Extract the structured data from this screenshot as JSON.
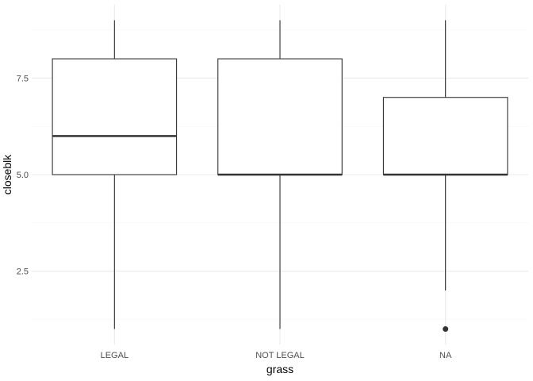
{
  "chart_data": {
    "type": "boxplot",
    "xlabel": "grass",
    "ylabel": "closeblk",
    "categories": [
      "LEGAL",
      "NOT LEGAL",
      "NA"
    ],
    "boxes": [
      {
        "category": "LEGAL",
        "whisker_low": 1,
        "q1": 5,
        "median": 6,
        "q3": 8,
        "whisker_high": 9,
        "outliers": []
      },
      {
        "category": "NOT LEGAL",
        "whisker_low": 1,
        "q1": 5,
        "median": 5,
        "q3": 8,
        "whisker_high": 9,
        "outliers": []
      },
      {
        "category": "NA",
        "whisker_low": 2,
        "q1": 5,
        "median": 5,
        "q3": 7,
        "whisker_high": 9,
        "outliers": [
          1
        ]
      }
    ],
    "ylim": [
      0.6,
      9.4
    ],
    "y_ticks": [
      2.5,
      5.0,
      7.5
    ],
    "y_tick_labels": [
      "2.5",
      "5.0",
      "7.5"
    ],
    "grid": true,
    "theme": "minimal",
    "colors": {
      "box_fill": "#ffffff",
      "box_stroke": "#333333",
      "grid_major": "#ebebeb",
      "grid_minor": "#f5f5f5",
      "outlier": "#333333"
    }
  }
}
